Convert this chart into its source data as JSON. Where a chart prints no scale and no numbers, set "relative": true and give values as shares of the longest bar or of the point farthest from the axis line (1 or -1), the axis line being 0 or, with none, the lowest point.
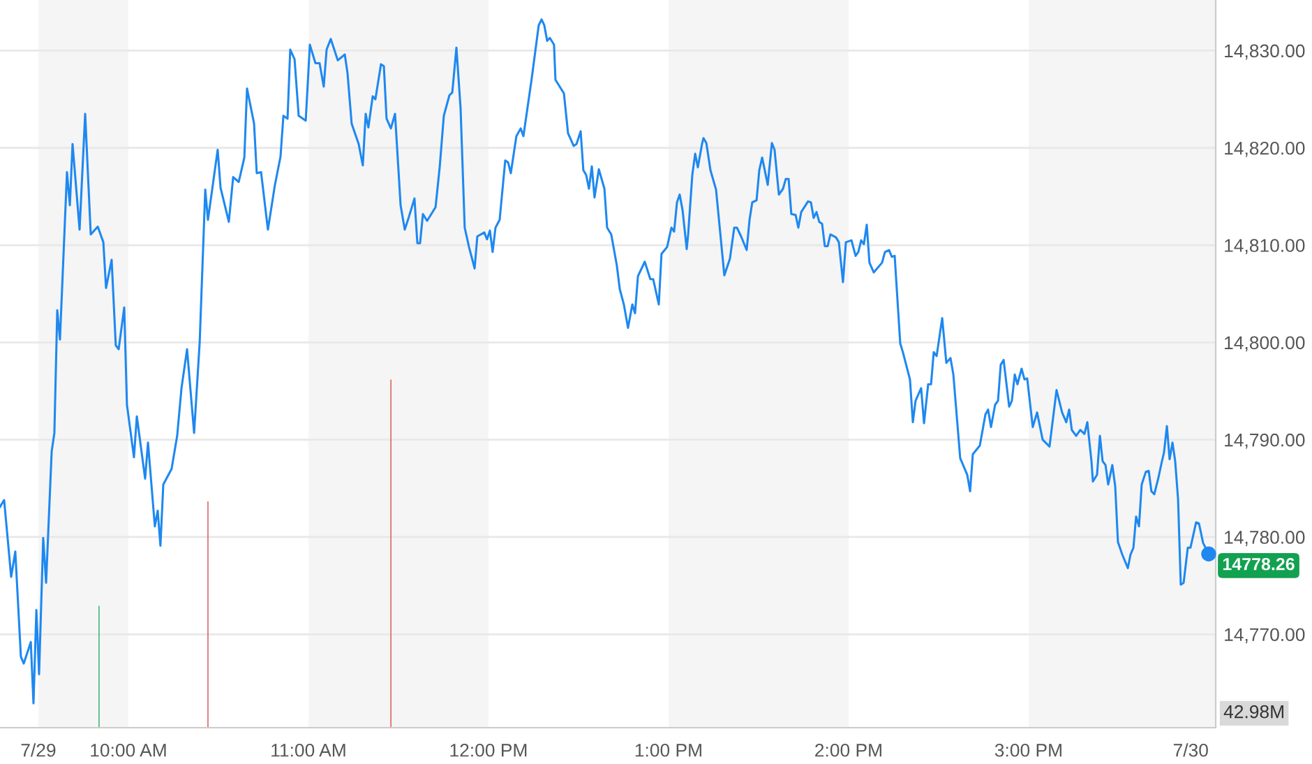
{
  "chart_data": [
    {
      "type": "line",
      "xlim": [
        9.287,
        16.039
      ],
      "ylim": [
        14760.4,
        14835.2
      ],
      "xticks": [
        {
          "value": 9.5,
          "label": "7/29"
        },
        {
          "value": 10,
          "label": "10:00 AM"
        },
        {
          "value": 11,
          "label": "11:00 AM"
        },
        {
          "value": 12,
          "label": "12:00 PM"
        },
        {
          "value": 13,
          "label": "1:00 PM"
        },
        {
          "value": 14,
          "label": "2:00 PM"
        },
        {
          "value": 15,
          "label": "3:00 PM"
        },
        {
          "value": 16,
          "label": "7/30"
        }
      ],
      "yticks": [
        {
          "value": 14770,
          "label": "14,770.00"
        },
        {
          "value": 14780,
          "label": "14,780.00"
        },
        {
          "value": 14790,
          "label": "14,790.00"
        },
        {
          "value": 14800,
          "label": "14,800.00"
        },
        {
          "value": 14810,
          "label": "14,810.00"
        },
        {
          "value": 14820,
          "label": "14,820.00"
        },
        {
          "value": 14830,
          "label": "14,830.00"
        }
      ],
      "grid": "y",
      "legend": false,
      "marker": "none",
      "line_style": "solid",
      "bands": [
        {
          "axis": "x",
          "from": 9.5,
          "to": 10,
          "color": "#f5f5f5"
        },
        {
          "axis": "x",
          "from": 11,
          "to": 12,
          "color": "#f5f5f5"
        },
        {
          "axis": "x",
          "from": 13,
          "to": 14,
          "color": "#f5f5f5"
        },
        {
          "axis": "x",
          "from": 15,
          "to": 16.039,
          "color": "#f5f5f5"
        }
      ],
      "annotations": [
        {
          "text": "14778.26",
          "x": 16.0,
          "y": 14778.26
        }
      ],
      "series": [
        {
          "color": "#1e88f0",
          "x": [
            9.287,
            9.31,
            9.349,
            9.372,
            9.403,
            9.419,
            9.458,
            9.473,
            9.489,
            9.504,
            9.527,
            9.543,
            9.574,
            9.589,
            9.605,
            9.62,
            9.659,
            9.675,
            9.69,
            9.729,
            9.76,
            9.791,
            9.83,
            9.861,
            9.876,
            9.907,
            9.93,
            9.946,
            9.977,
            9.992,
            10.031,
            10.047,
            10.093,
            10.109,
            10.147,
            10.163,
            10.178,
            10.194,
            10.24,
            10.271,
            10.295,
            10.326,
            10.365,
            10.396,
            10.427,
            10.442,
            10.496,
            10.512,
            10.558,
            10.582,
            10.613,
            10.644,
            10.659,
            10.698,
            10.713,
            10.737,
            10.775,
            10.814,
            10.845,
            10.861,
            10.884,
            10.899,
            10.923,
            10.946,
            10.985,
            11.008,
            11.039,
            11.062,
            11.085,
            11.101,
            11.124,
            11.163,
            11.202,
            11.217,
            11.24,
            11.279,
            11.302,
            11.318,
            11.333,
            11.357,
            11.372,
            11.403,
            11.419,
            11.434,
            11.458,
            11.481,
            11.512,
            11.535,
            11.558,
            11.589,
            11.605,
            11.62,
            11.636,
            11.659,
            11.706,
            11.729,
            11.752,
            11.783,
            11.799,
            11.822,
            11.845,
            11.868,
            11.892,
            11.923,
            11.938,
            11.977,
            11.992,
            12.008,
            12.023,
            12.039,
            12.062,
            12.093,
            12.109,
            12.124,
            12.155,
            12.179,
            12.194,
            12.24,
            12.279,
            12.295,
            12.31,
            12.326,
            12.341,
            12.364,
            12.372,
            12.419,
            12.442,
            12.473,
            12.489,
            12.512,
            12.527,
            12.543,
            12.558,
            12.574,
            12.589,
            12.613,
            12.644,
            12.659,
            12.682,
            12.713,
            12.729,
            12.752,
            12.775,
            12.799,
            12.814,
            12.83,
            12.868,
            12.899,
            12.915,
            12.946,
            12.961,
            12.992,
            13.016,
            13.031,
            13.047,
            13.062,
            13.078,
            13.101,
            13.109,
            13.132,
            13.148,
            13.163,
            13.186,
            13.194,
            13.21,
            13.233,
            13.264,
            13.31,
            13.341,
            13.365,
            13.38,
            13.403,
            13.434,
            13.45,
            13.465,
            13.489,
            13.504,
            13.52,
            13.551,
            13.574,
            13.589,
            13.613,
            13.636,
            13.651,
            13.667,
            13.682,
            13.706,
            13.721,
            13.737,
            13.775,
            13.791,
            13.806,
            13.822,
            13.837,
            13.853,
            13.868,
            13.884,
            13.899,
            13.93,
            13.946,
            13.969,
            13.985,
            14.016,
            14.039,
            14.054,
            14.07,
            14.085,
            14.101,
            14.116,
            14.14,
            14.186,
            14.202,
            14.225,
            14.24,
            14.256,
            14.287,
            14.303,
            14.341,
            14.357,
            14.372,
            14.403,
            14.419,
            14.442,
            14.458,
            14.473,
            14.489,
            14.52,
            14.543,
            14.566,
            14.582,
            14.62,
            14.659,
            14.675,
            14.69,
            14.729,
            14.76,
            14.775,
            14.791,
            14.814,
            14.83,
            14.845,
            14.861,
            14.892,
            14.907,
            14.923,
            14.938,
            14.961,
            14.977,
            14.992,
            15.023,
            15.047,
            15.078,
            15.116,
            15.155,
            15.186,
            15.209,
            15.225,
            15.24,
            15.264,
            15.287,
            15.31,
            15.326,
            15.349,
            15.357,
            15.38,
            15.396,
            15.411,
            15.427,
            15.442,
            15.465,
            15.481,
            15.496,
            15.52,
            15.551,
            15.566,
            15.582,
            15.597,
            15.613,
            15.628,
            15.651,
            15.667,
            15.682,
            15.698,
            15.721,
            15.737,
            15.752,
            15.768,
            15.783,
            15.799,
            15.814,
            15.83,
            15.845,
            15.861,
            15.884,
            15.899,
            15.93,
            15.946,
            15.969,
            16.0
          ],
          "values": [
            14783.1,
            14783.8,
            14775.9,
            14778.5,
            14767.7,
            14767.0,
            14769.2,
            14762.9,
            14772.5,
            14765.9,
            14779.9,
            14775.3,
            14788.8,
            14790.7,
            14803.3,
            14800.3,
            14817.5,
            14814.1,
            14820.4,
            14811.6,
            14823.5,
            14811.1,
            14811.9,
            14810.3,
            14805.6,
            14808.5,
            14799.7,
            14799.3,
            14803.6,
            14793.6,
            14788.2,
            14792.4,
            14786.0,
            14789.7,
            14781.1,
            14782.7,
            14779.1,
            14785.4,
            14787.0,
            14790.4,
            14795.3,
            14799.3,
            14790.7,
            14800.0,
            14815.7,
            14812.6,
            14819.8,
            14815.9,
            14812.4,
            14817.0,
            14816.5,
            14819.0,
            14826.1,
            14822.5,
            14817.4,
            14817.5,
            14811.6,
            14816.2,
            14819.1,
            14823.3,
            14823.0,
            14830.1,
            14829.1,
            14823.3,
            14822.8,
            14830.6,
            14828.7,
            14828.7,
            14826.3,
            14830.1,
            14831.2,
            14829.0,
            14829.6,
            14827.7,
            14822.5,
            14820.4,
            14818.2,
            14823.5,
            14822.1,
            14825.3,
            14825.0,
            14828.6,
            14828.4,
            14823.0,
            14822.0,
            14823.5,
            14814.1,
            14811.6,
            14812.9,
            14814.8,
            14810.2,
            14810.2,
            14813.2,
            14812.5,
            14813.9,
            14818.0,
            14823.3,
            14825.4,
            14825.7,
            14830.3,
            14824.1,
            14811.8,
            14809.8,
            14807.6,
            14810.9,
            14811.3,
            14810.6,
            14811.5,
            14809.3,
            14811.8,
            14812.6,
            14818.7,
            14818.5,
            14817.4,
            14821.2,
            14822.0,
            14821.2,
            14827.1,
            14832.6,
            14833.2,
            14832.6,
            14831.0,
            14831.3,
            14830.6,
            14827.0,
            14825.6,
            14821.5,
            14820.2,
            14820.4,
            14821.7,
            14817.7,
            14817.2,
            14815.8,
            14818.1,
            14814.9,
            14817.8,
            14815.8,
            14811.8,
            14811.1,
            14807.9,
            14805.5,
            14803.9,
            14801.5,
            14803.9,
            14803.0,
            14806.8,
            14808.3,
            14806.5,
            14806.5,
            14803.9,
            14809.1,
            14809.8,
            14811.8,
            14811.4,
            14814.4,
            14815.2,
            14813.6,
            14809.6,
            14811.1,
            14817.2,
            14819.4,
            14818.0,
            14820.4,
            14821.0,
            14820.5,
            14817.7,
            14815.7,
            14806.9,
            14808.6,
            14811.8,
            14811.8,
            14810.9,
            14809.5,
            14812.6,
            14814.4,
            14814.6,
            14817.7,
            14819.0,
            14816.2,
            14820.5,
            14819.8,
            14815.2,
            14815.8,
            14816.8,
            14816.8,
            14813.2,
            14813.1,
            14811.8,
            14813.4,
            14814.5,
            14814.4,
            14812.8,
            14813.4,
            14812.4,
            14812.2,
            14809.9,
            14809.9,
            14811.1,
            14810.8,
            14810.3,
            14806.2,
            14810.3,
            14810.5,
            14808.9,
            14809.3,
            14810.5,
            14810.1,
            14812.1,
            14808.2,
            14807.2,
            14808.2,
            14809.3,
            14809.5,
            14808.8,
            14808.9,
            14799.9,
            14798.9,
            14796.2,
            14791.8,
            14794.0,
            14795.3,
            14791.7,
            14795.7,
            14795.7,
            14799.0,
            14798.6,
            14802.5,
            14797.9,
            14798.4,
            14796.7,
            14788.1,
            14786.4,
            14784.7,
            14788.5,
            14789.4,
            14792.6,
            14793.1,
            14791.3,
            14793.6,
            14794.0,
            14797.7,
            14798.2,
            14793.4,
            14794.0,
            14796.7,
            14795.7,
            14797.3,
            14796.2,
            14796.3,
            14791.3,
            14792.8,
            14790.0,
            14789.3,
            14795.1,
            14792.8,
            14791.8,
            14793.1,
            14791.0,
            14790.4,
            14791.0,
            14790.6,
            14791.8,
            14787.8,
            14785.7,
            14786.4,
            14790.4,
            14787.8,
            14787.4,
            14785.4,
            14787.4,
            14785.2,
            14779.5,
            14778.2,
            14776.8,
            14778.2,
            14778.9,
            14782.1,
            14781.1,
            14785.4,
            14786.7,
            14786.8,
            14784.7,
            14784.4,
            14786.1,
            14787.5,
            14788.7,
            14791.4,
            14788.0,
            14789.7,
            14787.8,
            14783.9,
            14775.1,
            14775.3,
            14778.9,
            14778.9,
            14781.5,
            14781.4,
            14779.4,
            14778.26
          ]
        },
        {
          "type": "scatter",
          "marker": "circle",
          "color": "#1e88f0",
          "x": [
            16.0
          ],
          "values": [
            14778.26
          ]
        }
      ]
    },
    {
      "type": "bar",
      "relative": true,
      "xlim": [
        9.287,
        16.039
      ],
      "tick_labels": false,
      "x": [
        9.837,
        10.442,
        11.458
      ],
      "values": [
        0.35,
        0.65,
        1.0
      ],
      "colors": [
        "#3cb371",
        "#e05a5a",
        "#e05a5a"
      ],
      "annotations": [
        "42.98M"
      ]
    }
  ]
}
